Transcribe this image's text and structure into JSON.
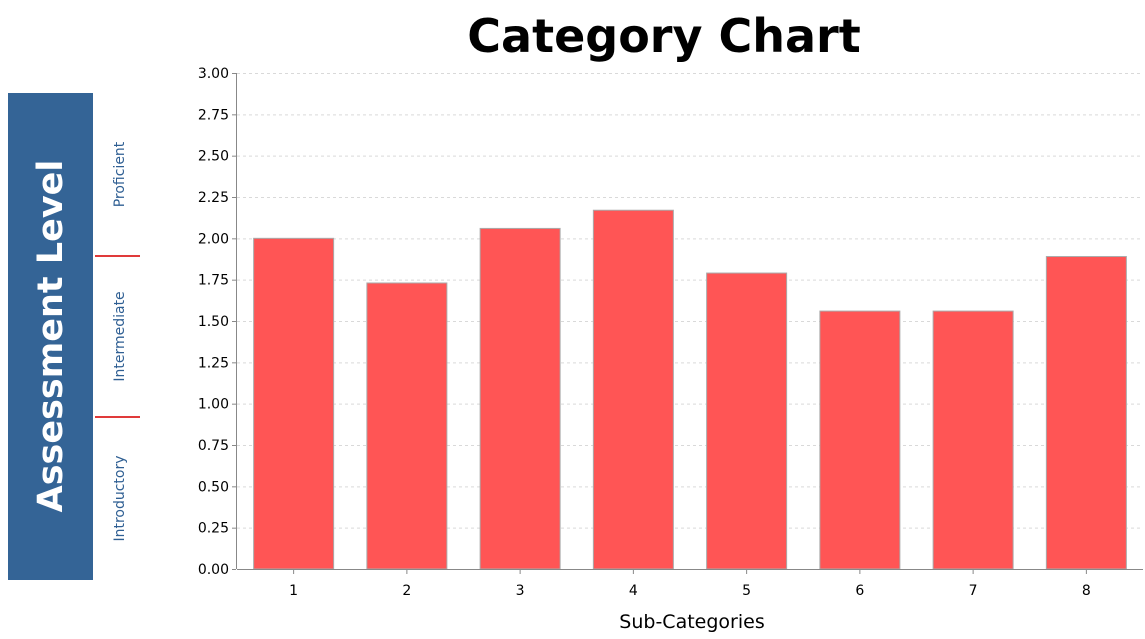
{
  "chart_data": {
    "type": "bar",
    "title": "Category Chart",
    "xlabel": "Sub-Categories",
    "ylabel": "",
    "categories": [
      "1",
      "2",
      "3",
      "4",
      "5",
      "6",
      "7",
      "8"
    ],
    "values": [
      2.0,
      1.73,
      2.06,
      2.17,
      1.79,
      1.56,
      1.56,
      1.89
    ],
    "ylim": [
      0,
      3
    ],
    "yticks": [
      "0.00",
      "0.25",
      "0.50",
      "0.75",
      "1.00",
      "1.25",
      "1.50",
      "1.75",
      "2.00",
      "2.25",
      "2.50",
      "2.75",
      "3.00"
    ],
    "grid": true,
    "legend": "none"
  },
  "side_panel": {
    "title": "Assessment Level",
    "levels": [
      "Introductory",
      "Intermediate",
      "Proficient"
    ]
  },
  "colors": {
    "bar": "#ff5555",
    "bar_edge": "#aaaaaa",
    "panel": "#346496",
    "level_text": "#2f5f93",
    "separator": "#e03a3a",
    "grid": "#d9d9d9",
    "axis": "#888888"
  }
}
